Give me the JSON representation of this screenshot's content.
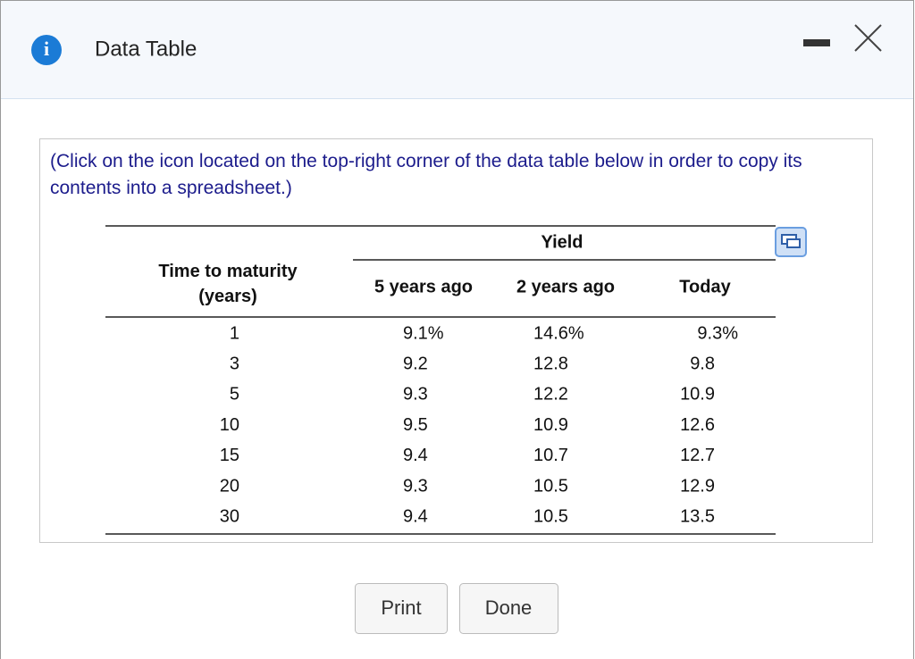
{
  "header": {
    "icon": "i",
    "title": "Data Table"
  },
  "instruction": "(Click on the icon located on the top-right corner of the data table below in order to copy its contents into a spreadsheet.)",
  "table": {
    "group_header": "Yield",
    "columns": [
      "Time to maturity (years)",
      "5 years ago",
      "2 years ago",
      "Today"
    ],
    "rows": [
      [
        "1",
        "9.1%",
        "14.6%",
        "9.3%"
      ],
      [
        "3",
        "9.2",
        "12.8",
        "9.8"
      ],
      [
        "5",
        "9.3",
        "12.2",
        "10.9"
      ],
      [
        "10",
        "9.5",
        "10.9",
        "12.6"
      ],
      [
        "15",
        "9.4",
        "10.7",
        "12.7"
      ],
      [
        "20",
        "9.3",
        "10.5",
        "12.9"
      ],
      [
        "30",
        "9.4",
        "10.5",
        "13.5"
      ]
    ]
  },
  "buttons": [
    "Print",
    "Done"
  ]
}
